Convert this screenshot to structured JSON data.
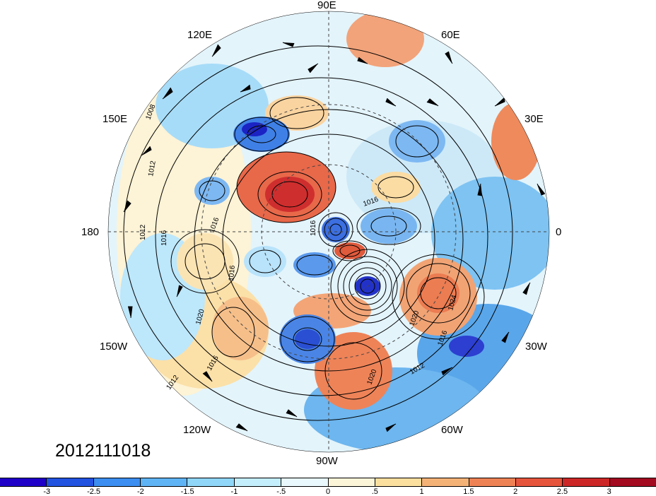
{
  "map": {
    "projection": "north polar stereographic",
    "longitude_labels": {
      "e90": "90E",
      "e60": "60E",
      "e30": "30E",
      "zero": "0",
      "w30": "30W",
      "w60": "60W",
      "w90": "90W",
      "w120": "120W",
      "w150": "150W",
      "dateline": "180",
      "e150": "150E",
      "e120": "120E"
    },
    "contour_labels": [
      "1008",
      "1012",
      "1016",
      "1012",
      "1016",
      "1016",
      "1020",
      "1016",
      "1012",
      "1016",
      "1020",
      "1024",
      "1016",
      "1020",
      "1012",
      "1016"
    ],
    "date_stamp": "2012111018"
  },
  "colorbar": {
    "colors": [
      "#1e00c8",
      "#2252e0",
      "#3c8ef0",
      "#5fb4f5",
      "#8fd6f9",
      "#c4eefc",
      "#e8f8fd",
      "#fdf5d8",
      "#fbdf9e",
      "#f5b277",
      "#ef8255",
      "#e6543c",
      "#cc2626",
      "#a30a20"
    ],
    "tick_labels": [
      "-3",
      "-2.5",
      "-2",
      "-1.5",
      "-1",
      "-.5",
      "0",
      ".5",
      "1",
      "1.5",
      "2",
      "2.5",
      "3"
    ]
  }
}
